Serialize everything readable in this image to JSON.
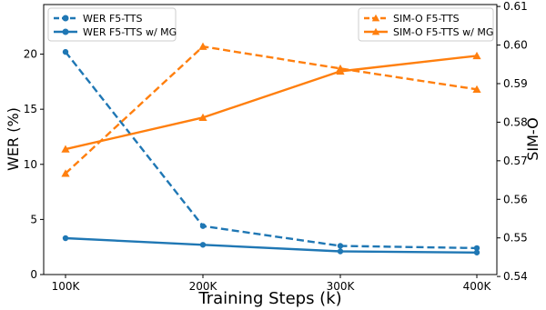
{
  "chart_data": {
    "type": "line",
    "x": [
      "100K",
      "200K",
      "300K",
      "400K"
    ],
    "xlabel": "Training Steps (k)",
    "left_axis": {
      "label": "WER (%)",
      "ylim": [
        0,
        24.5
      ],
      "ticks": [
        0,
        5,
        10,
        15,
        20
      ],
      "tick_labels": [
        "0",
        "5",
        "10",
        "15",
        "20"
      ]
    },
    "right_axis": {
      "label": "SIM-O",
      "ylim": [
        0.5405,
        0.6105
      ],
      "ticks": [
        0.54,
        0.55,
        0.56,
        0.57,
        0.58,
        0.59,
        0.6,
        0.61
      ],
      "tick_labels": [
        "0.54",
        "0.55",
        "0.56",
        "0.57",
        "0.58",
        "0.59",
        "0.60",
        "0.61"
      ]
    },
    "series": [
      {
        "name": "WER F5-TTS",
        "axis": "left",
        "values": [
          20.2,
          4.4,
          2.6,
          2.4
        ],
        "color": "#1f77b4",
        "dashed": true,
        "marker": "circle"
      },
      {
        "name": "WER F5-TTS w/ MG",
        "axis": "left",
        "values": [
          3.3,
          2.7,
          2.1,
          2.0
        ],
        "color": "#1f77b4",
        "dashed": false,
        "marker": "circle"
      },
      {
        "name": "SIM-O F5-TTS",
        "axis": "right",
        "values": [
          0.5667,
          0.5996,
          0.5939,
          0.5885
        ],
        "color": "#ff7f0e",
        "dashed": true,
        "marker": "triangle"
      },
      {
        "name": "SIM-O F5-TTS w/ MG",
        "axis": "right",
        "values": [
          0.573,
          0.5812,
          0.5932,
          0.5972
        ],
        "color": "#ff7f0e",
        "dashed": false,
        "marker": "triangle"
      }
    ],
    "legends": [
      {
        "placement": "top-left",
        "entries": [
          "WER F5-TTS",
          "WER F5-TTS w/ MG"
        ]
      },
      {
        "placement": "top-right",
        "entries": [
          "SIM-O F5-TTS",
          "SIM-O F5-TTS w/ MG"
        ]
      }
    ],
    "grid": false
  }
}
